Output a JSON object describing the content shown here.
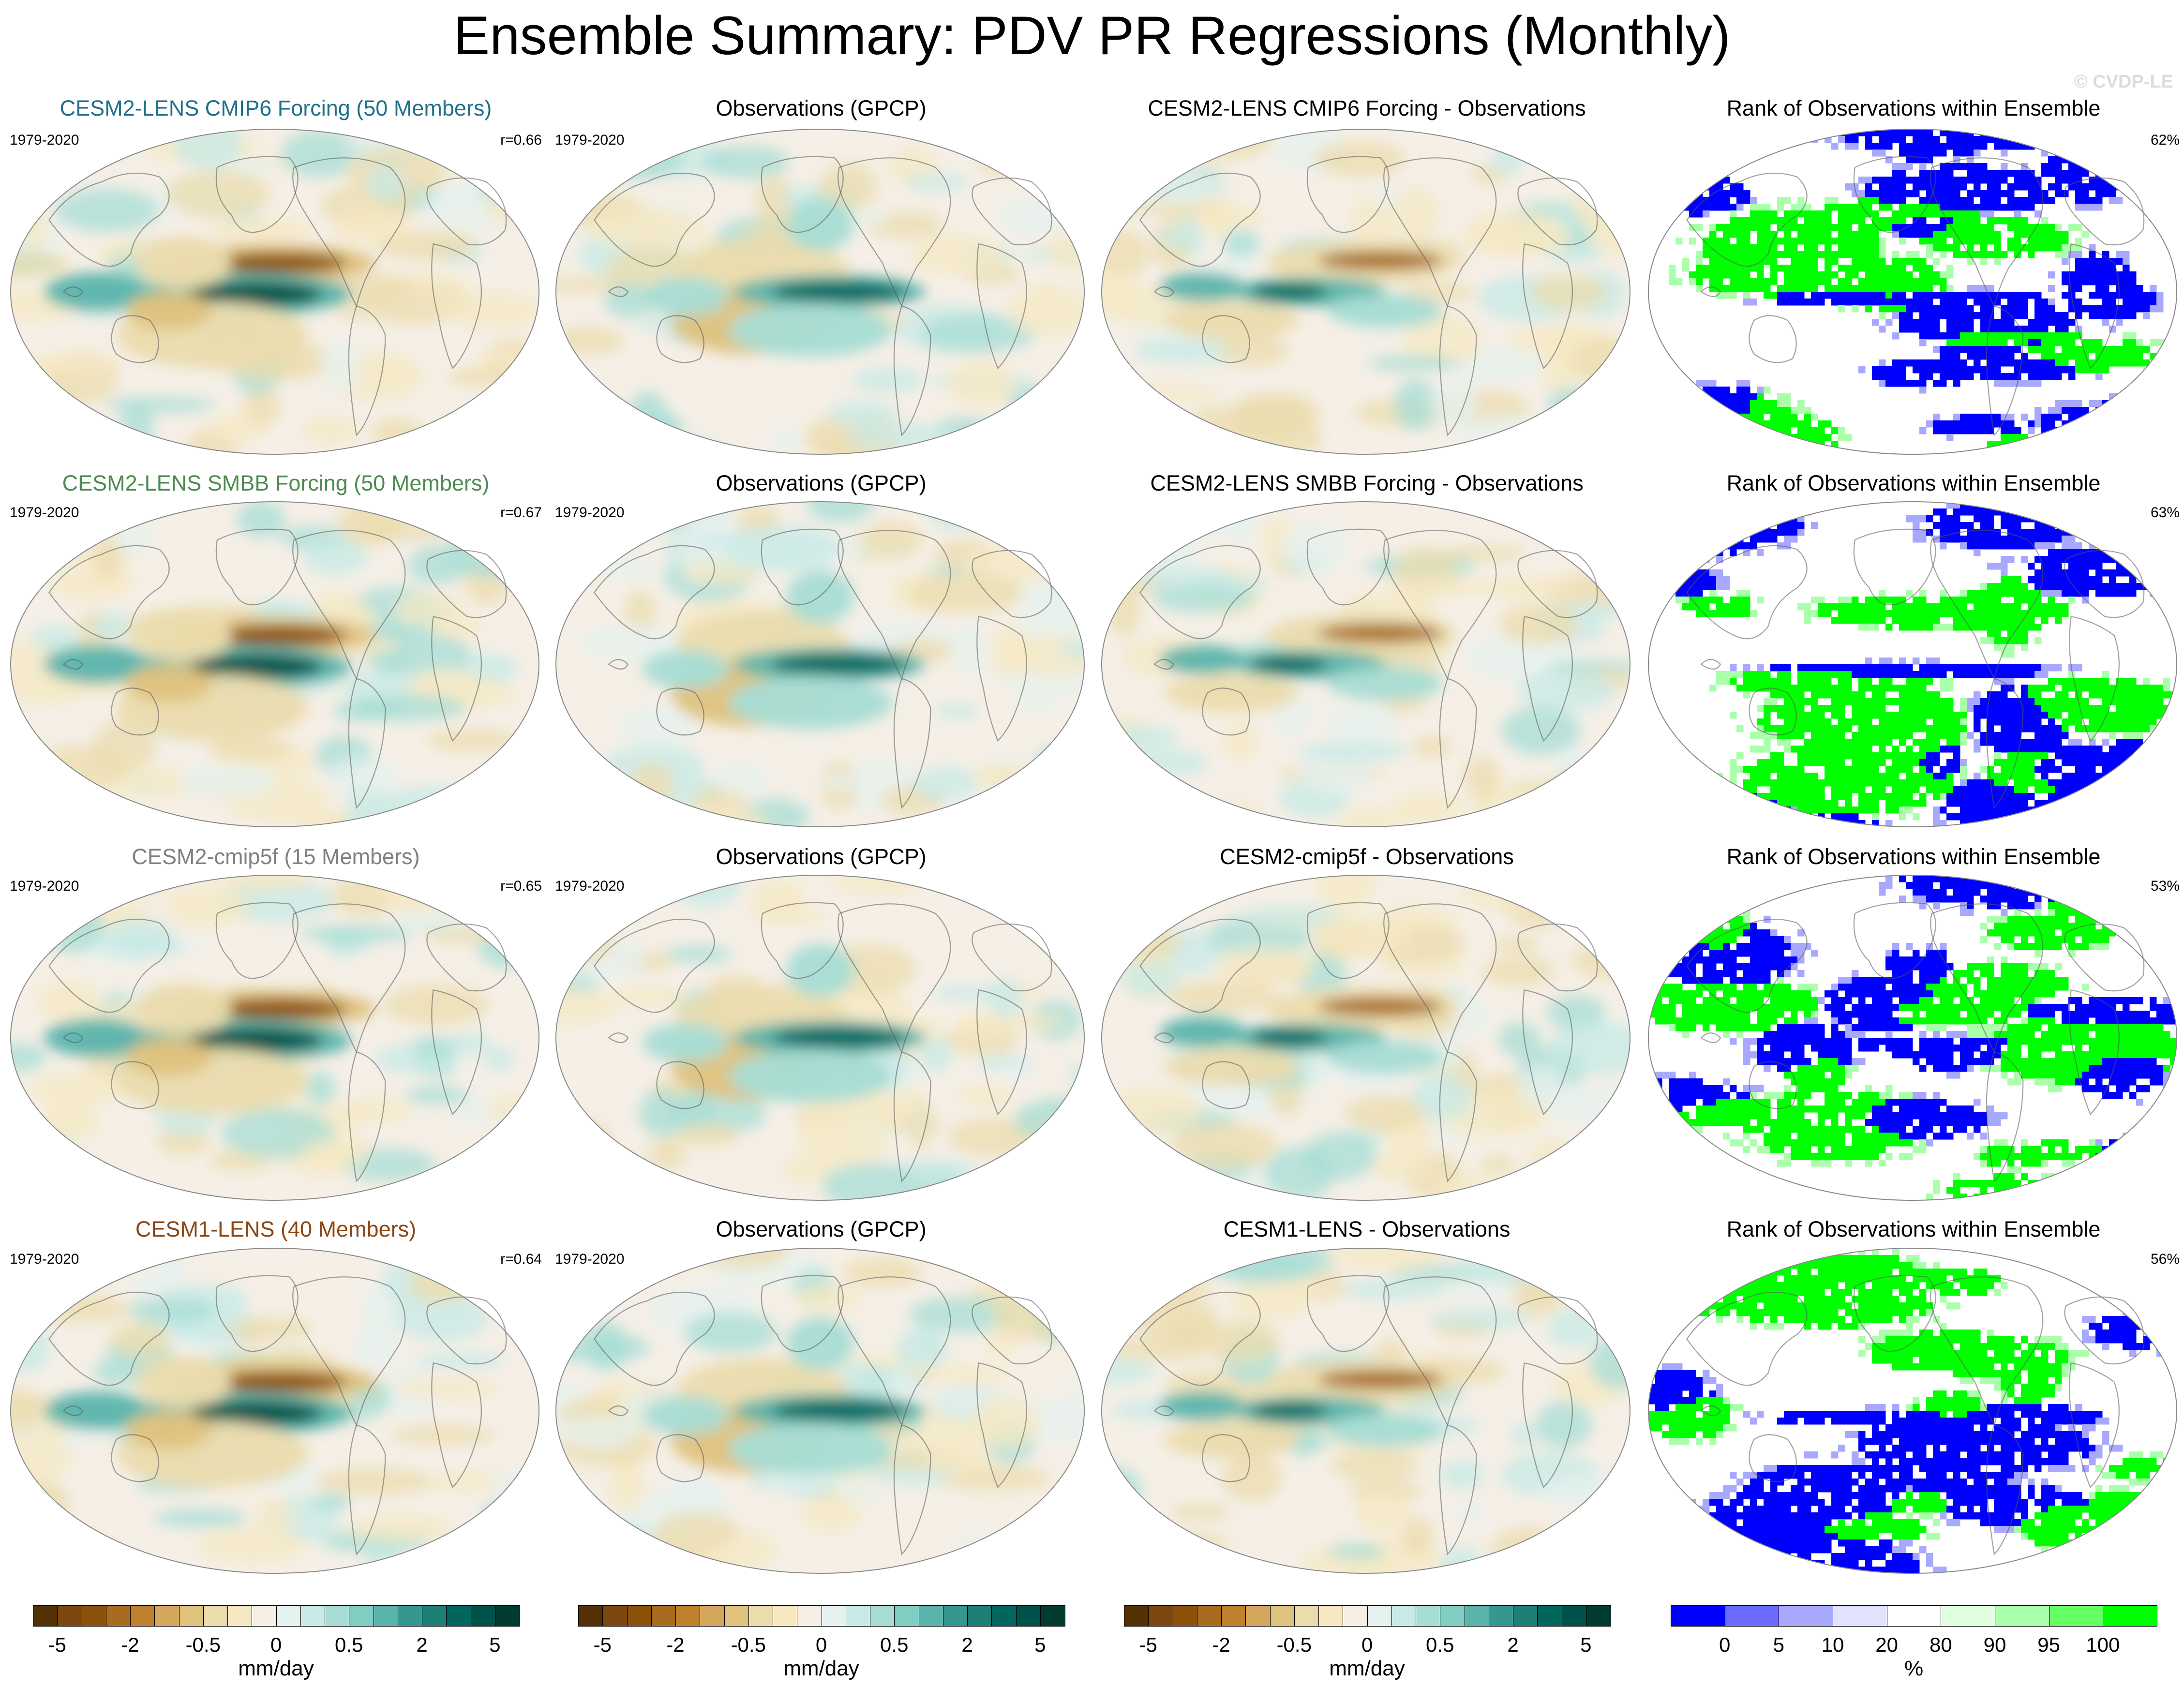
{
  "title": "Ensemble Summary: PDV PR Regressions (Monthly)",
  "watermark": "© CVDP-LE",
  "rows": [
    {
      "model_title": "CESM2-LENS CMIP6 Forcing (50 Members)",
      "model_color": "#1f6f8b",
      "period": "1979-2020",
      "r": "r=0.66",
      "obs_title": "Observations (GPCP)",
      "obs_period": "1979-2020",
      "diff_title": "CESM2-LENS CMIP6 Forcing - Observations",
      "rank_title": "Rank of Observations within Ensemble",
      "rank_pct": "62%"
    },
    {
      "model_title": "CESM2-LENS SMBB Forcing (50 Members)",
      "model_color": "#4e8a50",
      "period": "1979-2020",
      "r": "r=0.67",
      "obs_title": "Observations (GPCP)",
      "obs_period": "1979-2020",
      "diff_title": "CESM2-LENS SMBB Forcing - Observations",
      "rank_title": "Rank of Observations within Ensemble",
      "rank_pct": "63%"
    },
    {
      "model_title": "CESM2-cmip5f (15 Members)",
      "model_color": "#808080",
      "period": "1979-2020",
      "r": "r=0.65",
      "obs_title": "Observations (GPCP)",
      "obs_period": "1979-2020",
      "diff_title": "CESM2-cmip5f - Observations",
      "rank_title": "Rank of Observations within Ensemble",
      "rank_pct": "53%"
    },
    {
      "model_title": "CESM1-LENS (40 Members)",
      "model_color": "#8b4513",
      "period": "1979-2020",
      "r": "r=0.64",
      "obs_title": "Observations (GPCP)",
      "obs_period": "1979-2020",
      "diff_title": "CESM1-LENS - Observations",
      "rank_title": "Rank of Observations within Ensemble",
      "rank_pct": "56%"
    }
  ],
  "colorbars": {
    "regression": {
      "units": "mm/day",
      "tick_labels": [
        "-5",
        "-2",
        "-0.5",
        "0",
        "0.5",
        "2",
        "5"
      ],
      "colors": [
        "#543005",
        "#7a4810",
        "#8c510a",
        "#a86c1f",
        "#bf812d",
        "#d4a75d",
        "#dfc27d",
        "#ebdcae",
        "#f6e8c3",
        "#f5f0e6",
        "#e6f2ef",
        "#c7eae5",
        "#a7ddd5",
        "#80cdc1",
        "#5ab4ac",
        "#35978f",
        "#1e7f77",
        "#01665e",
        "#005148",
        "#003c30"
      ]
    },
    "rank": {
      "units": "%",
      "tick_labels": [
        "0",
        "5",
        "10",
        "20",
        "80",
        "90",
        "95",
        "100"
      ],
      "colors": [
        "#0000ff",
        "#6b6bff",
        "#a8a8ff",
        "#e2e2ff",
        "#ffffff",
        "#e0ffe0",
        "#aaffaa",
        "#66ff66",
        "#00ff00"
      ]
    }
  },
  "colors": {
    "land_outline": "#555555",
    "brown": "#bf812d",
    "teal": "#35978f",
    "rank_blue": "#0000ff",
    "rank_green": "#00ff00"
  }
}
